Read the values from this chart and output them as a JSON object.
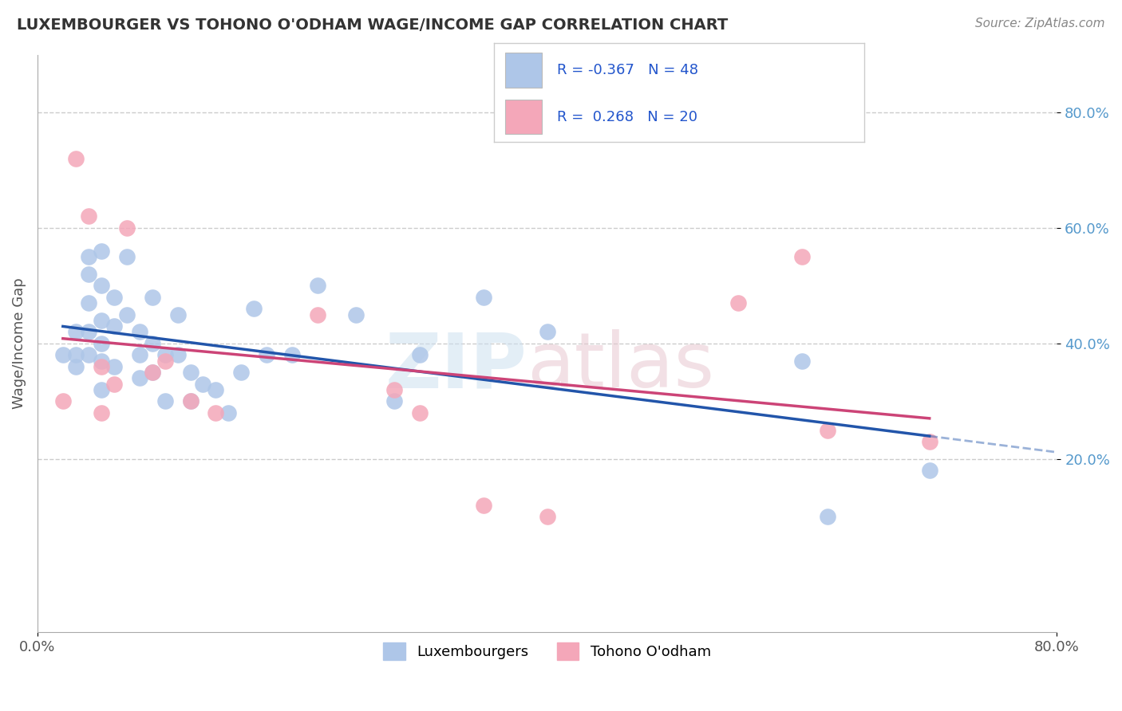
{
  "title": "LUXEMBOURGER VS TOHONO O'ODHAM WAGE/INCOME GAP CORRELATION CHART",
  "source": "Source: ZipAtlas.com",
  "ylabel": "Wage/Income Gap",
  "xlim": [
    0.0,
    0.8
  ],
  "ylim": [
    -0.1,
    0.9
  ],
  "ytick_positions": [
    0.2,
    0.4,
    0.6,
    0.8
  ],
  "ytick_labels": [
    "20.0%",
    "40.0%",
    "60.0%",
    "80.0%"
  ],
  "blue_color": "#aec6e8",
  "pink_color": "#f4a7b9",
  "blue_line_color": "#2255aa",
  "pink_line_color": "#cc4477",
  "legend_label1": "Luxembourgers",
  "legend_label2": "Tohono O'odham",
  "R1": -0.367,
  "N1": 48,
  "R2": 0.268,
  "N2": 20,
  "blue_x": [
    0.02,
    0.03,
    0.03,
    0.03,
    0.04,
    0.04,
    0.04,
    0.04,
    0.04,
    0.05,
    0.05,
    0.05,
    0.05,
    0.05,
    0.05,
    0.06,
    0.06,
    0.06,
    0.07,
    0.07,
    0.08,
    0.08,
    0.08,
    0.09,
    0.09,
    0.09,
    0.1,
    0.1,
    0.11,
    0.11,
    0.12,
    0.12,
    0.13,
    0.14,
    0.15,
    0.16,
    0.17,
    0.18,
    0.2,
    0.22,
    0.25,
    0.28,
    0.3,
    0.35,
    0.4,
    0.6,
    0.62,
    0.7
  ],
  "blue_y": [
    0.38,
    0.36,
    0.42,
    0.38,
    0.55,
    0.52,
    0.47,
    0.42,
    0.38,
    0.56,
    0.5,
    0.44,
    0.4,
    0.37,
    0.32,
    0.48,
    0.43,
    0.36,
    0.55,
    0.45,
    0.42,
    0.38,
    0.34,
    0.48,
    0.4,
    0.35,
    0.38,
    0.3,
    0.45,
    0.38,
    0.35,
    0.3,
    0.33,
    0.32,
    0.28,
    0.35,
    0.46,
    0.38,
    0.38,
    0.5,
    0.45,
    0.3,
    0.38,
    0.48,
    0.42,
    0.37,
    0.1,
    0.18
  ],
  "pink_x": [
    0.02,
    0.03,
    0.04,
    0.05,
    0.05,
    0.06,
    0.07,
    0.09,
    0.1,
    0.12,
    0.14,
    0.22,
    0.28,
    0.3,
    0.35,
    0.4,
    0.55,
    0.6,
    0.62,
    0.7
  ],
  "pink_y": [
    0.3,
    0.72,
    0.62,
    0.36,
    0.28,
    0.33,
    0.6,
    0.35,
    0.37,
    0.3,
    0.28,
    0.45,
    0.32,
    0.28,
    0.12,
    0.1,
    0.47,
    0.55,
    0.25,
    0.23
  ],
  "background_color": "#ffffff",
  "grid_color": "#cccccc"
}
